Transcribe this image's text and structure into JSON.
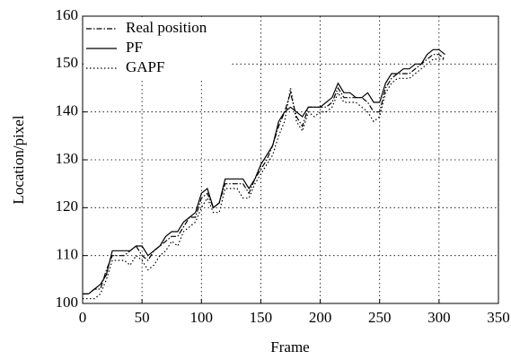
{
  "chart_data": {
    "type": "line",
    "xlabel": "Frame",
    "ylabel": "Location/pixel",
    "x": [
      0,
      5,
      10,
      15,
      20,
      25,
      30,
      35,
      40,
      45,
      50,
      55,
      60,
      65,
      70,
      75,
      80,
      85,
      90,
      95,
      100,
      105,
      110,
      115,
      120,
      125,
      130,
      135,
      140,
      145,
      150,
      155,
      160,
      165,
      170,
      175,
      180,
      185,
      190,
      195,
      200,
      205,
      210,
      215,
      220,
      225,
      230,
      235,
      240,
      245,
      250,
      255,
      260,
      265,
      270,
      275,
      280,
      285,
      290,
      295,
      300,
      305
    ],
    "series": [
      {
        "name": "Real position",
        "color": "#000000",
        "style": "dashdot",
        "values": [
          102,
          102,
          103,
          103,
          107,
          110,
          110,
          110,
          111,
          112,
          110,
          109,
          111,
          112,
          113,
          114,
          114,
          116,
          118,
          118,
          122,
          123,
          120,
          121,
          125,
          125,
          125,
          125,
          123,
          126,
          128,
          130,
          133,
          137,
          140,
          144,
          139,
          137,
          141,
          141,
          141,
          141,
          142,
          145,
          143,
          143,
          143,
          143,
          142,
          140,
          140,
          145,
          147,
          148,
          148,
          148,
          149,
          150,
          151,
          152,
          152,
          151
        ]
      },
      {
        "name": "PF",
        "color": "#000000",
        "style": "solid",
        "values": [
          102,
          102,
          103,
          104,
          106,
          111,
          111,
          111,
          111,
          112,
          112,
          110,
          111,
          112,
          114,
          115,
          115,
          117,
          118,
          119,
          123,
          124,
          120,
          121,
          126,
          126,
          126,
          126,
          124,
          126,
          129,
          131,
          133,
          138,
          140,
          141,
          140,
          139,
          141,
          141,
          141,
          142,
          143,
          146,
          144,
          144,
          143,
          143,
          144,
          142,
          142,
          146,
          148,
          148,
          149,
          149,
          150,
          150,
          152,
          153,
          153,
          152
        ]
      },
      {
        "name": "GAPF",
        "color": "#000000",
        "style": "dotted",
        "values": [
          101,
          101,
          101,
          102,
          105,
          109,
          109,
          109,
          108,
          110,
          109,
          107,
          108,
          110,
          111,
          113,
          112,
          115,
          116,
          117,
          120,
          122,
          119,
          119,
          124,
          124,
          124,
          122,
          122,
          125,
          127,
          129,
          131,
          135,
          138,
          145,
          138,
          136,
          140,
          139,
          140,
          140,
          141,
          144,
          142,
          142,
          142,
          141,
          140,
          138,
          139,
          144,
          146,
          147,
          147,
          147,
          148,
          149,
          150,
          151,
          151,
          151
        ]
      }
    ],
    "xlim": [
      0,
      350
    ],
    "xticks": [
      0,
      50,
      100,
      150,
      200,
      250,
      300,
      350
    ],
    "ylim": [
      100,
      160
    ],
    "yticks": [
      100,
      110,
      120,
      130,
      140,
      150,
      160
    ],
    "grid": true,
    "legend": "upper left"
  }
}
